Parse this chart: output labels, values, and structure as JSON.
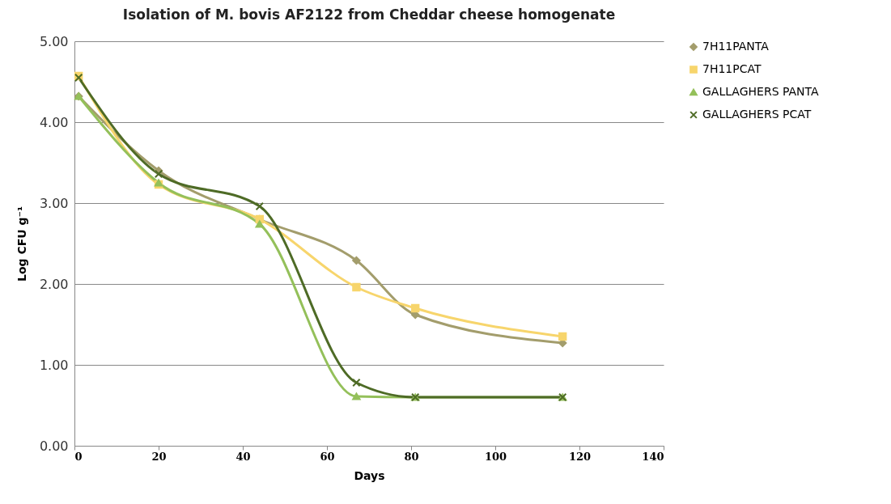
{
  "chart_data": {
    "type": "line",
    "title": "Isolation of M. bovis AF2122 from Cheddar cheese homogenate",
    "xlabel": "Days",
    "ylabel": "Log CFU g⁻¹",
    "x": [
      1,
      20,
      44,
      67,
      81,
      116
    ],
    "series": [
      {
        "name": "7H11PANTA",
        "color": "#a39d6c",
        "marker": "diamond",
        "values": [
          4.32,
          3.4,
          2.8,
          2.29,
          1.62,
          1.27
        ]
      },
      {
        "name": "7H11PCAT",
        "color": "#f7d56c",
        "marker": "square",
        "values": [
          4.57,
          3.23,
          2.8,
          1.96,
          1.7,
          1.35
        ]
      },
      {
        "name": "GALLAGHERS PANTA",
        "color": "#94c05a",
        "marker": "triangle",
        "values": [
          4.32,
          3.25,
          2.74,
          0.61,
          0.6,
          0.6
        ]
      },
      {
        "name": "GALLAGHERS PCAT",
        "color": "#4e6b26",
        "marker": "cross",
        "values": [
          4.55,
          3.36,
          2.96,
          0.78,
          0.6,
          0.6
        ]
      }
    ],
    "xlim": [
      0,
      140
    ],
    "xticks": [
      0,
      20,
      40,
      60,
      80,
      100,
      120,
      140
    ],
    "ylim": [
      0,
      5
    ],
    "yticks": [
      {
        "value": 0,
        "label": "0.00"
      },
      {
        "value": 1,
        "label": "1.00"
      },
      {
        "value": 2,
        "label": "2.00"
      },
      {
        "value": 3,
        "label": "3.00"
      },
      {
        "value": 4,
        "label": "4.00"
      },
      {
        "value": 5,
        "label": "5.00"
      }
    ],
    "grid": "y",
    "legend": "right"
  }
}
